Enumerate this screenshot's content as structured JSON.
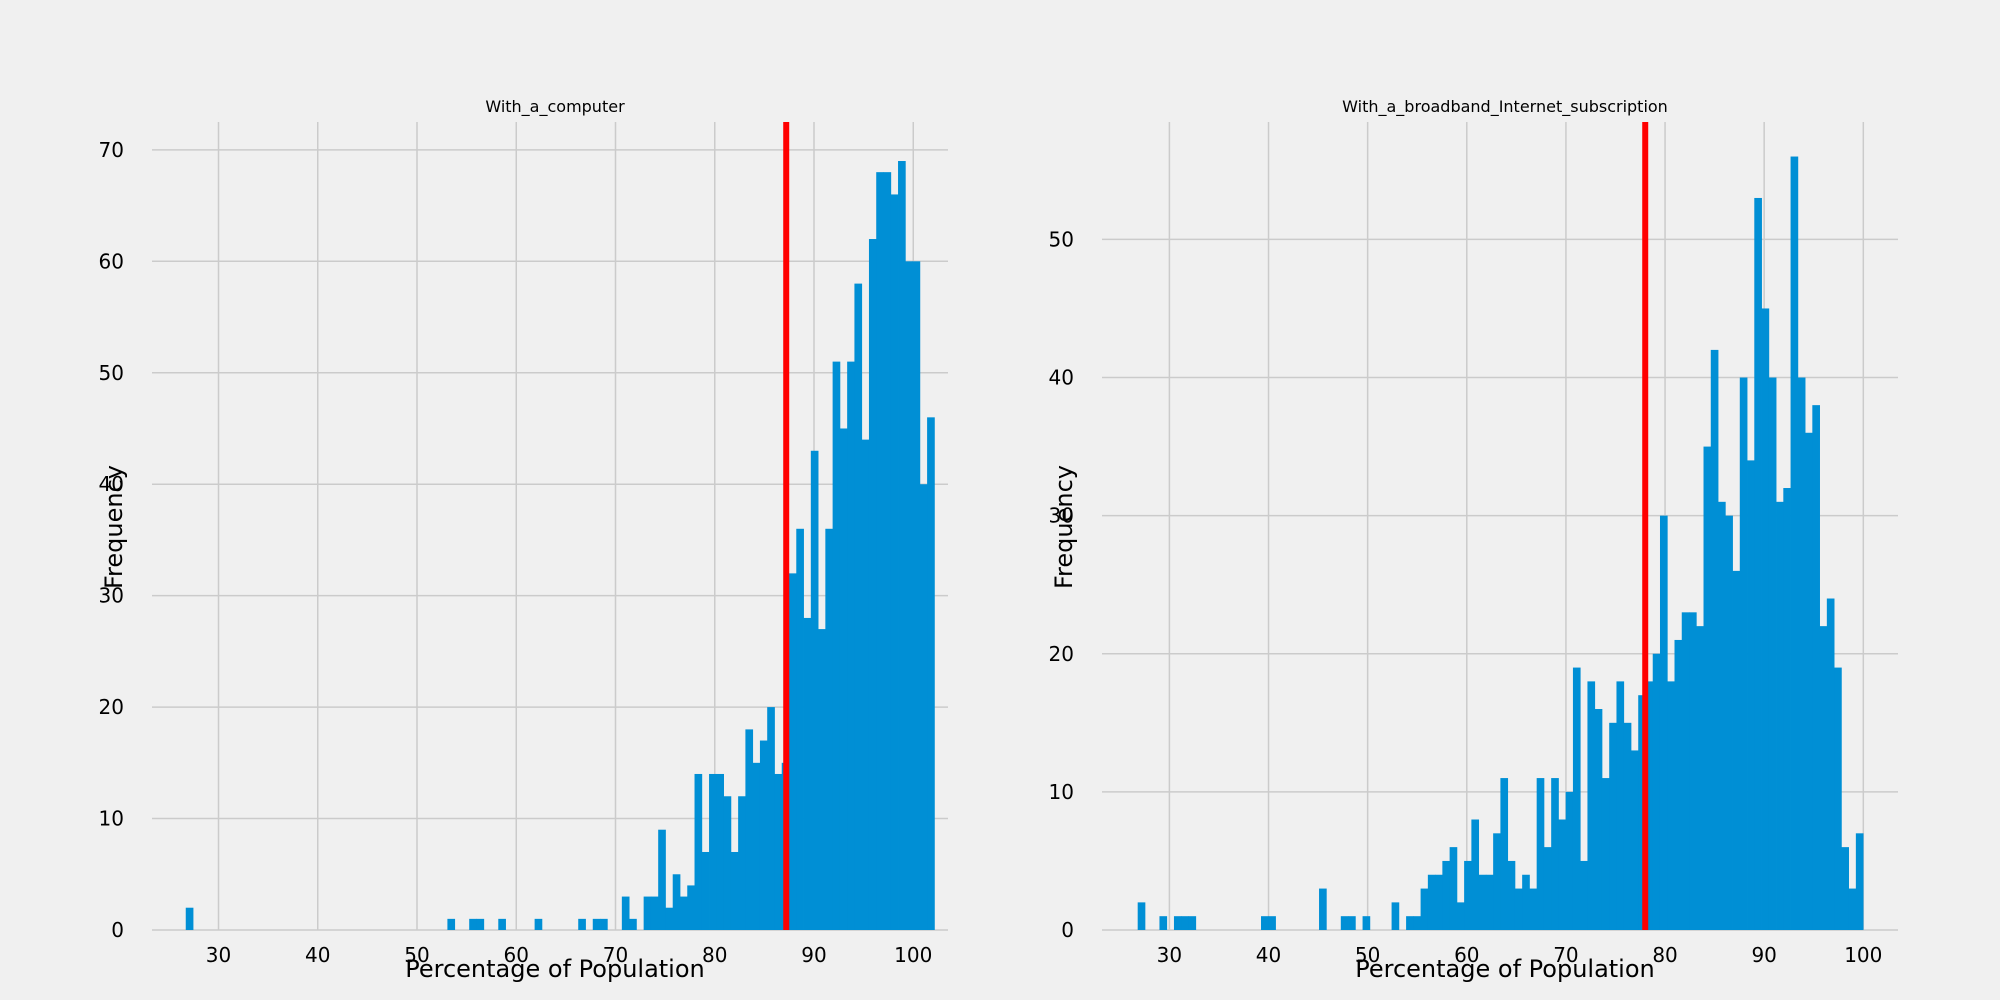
{
  "chart_data": [
    {
      "type": "bar",
      "title": "With_a_computer",
      "xlabel": "Percentage of Population",
      "ylabel": "Frequency",
      "xlim": [
        23.3,
        103.5
      ],
      "ylim": [
        0,
        72.5
      ],
      "xticks": [
        30,
        40,
        50,
        60,
        70,
        80,
        90,
        100
      ],
      "yticks": [
        0,
        10,
        20,
        30,
        40,
        50,
        60,
        70
      ],
      "grid": true,
      "bar_color": "#008fd5",
      "bin_start": 26.7,
      "bin_width": 0.7323,
      "values": [
        2,
        0,
        0,
        0,
        0,
        0,
        0,
        0,
        0,
        0,
        0,
        0,
        0,
        0,
        0,
        0,
        0,
        0,
        0,
        0,
        0,
        0,
        0,
        0,
        0,
        0,
        0,
        0,
        0,
        0,
        0,
        0,
        0,
        0,
        0,
        0,
        1,
        0,
        0,
        1,
        1,
        0,
        0,
        1,
        0,
        0,
        0,
        0,
        1,
        0,
        0,
        0,
        0,
        0,
        1,
        0,
        1,
        1,
        0,
        0,
        3,
        1,
        0,
        3,
        3,
        9,
        2,
        5,
        3,
        4,
        14,
        7,
        14,
        14,
        12,
        7,
        12,
        18,
        15,
        17,
        20,
        14,
        15,
        32,
        36,
        28,
        43,
        27,
        36,
        51,
        45,
        51,
        58,
        44,
        62,
        68,
        68,
        66,
        69,
        60,
        60,
        40,
        46
      ],
      "vline": {
        "x": 87.2,
        "color": "#ff0000"
      }
    },
    {
      "type": "bar",
      "title": "With_a_broadband_Internet_subscription",
      "xlabel": "Percentage of Population",
      "ylabel": "Frequency",
      "xlim": [
        23.2,
        103.5
      ],
      "ylim": [
        0,
        58.5
      ],
      "xticks": [
        30,
        40,
        50,
        60,
        70,
        80,
        90,
        100
      ],
      "yticks": [
        0,
        10,
        20,
        30,
        40,
        50
      ],
      "grid": true,
      "bar_color": "#008fd5",
      "bin_start": 26.8,
      "bin_width": 0.7318,
      "values": [
        2,
        0,
        0,
        1,
        0,
        1,
        1,
        1,
        0,
        0,
        0,
        0,
        0,
        0,
        0,
        0,
        0,
        1,
        1,
        0,
        0,
        0,
        0,
        0,
        0,
        3,
        0,
        0,
        1,
        1,
        0,
        1,
        0,
        0,
        0,
        2,
        0,
        1,
        1,
        3,
        4,
        4,
        5,
        6,
        2,
        5,
        8,
        4,
        4,
        7,
        11,
        5,
        3,
        4,
        3,
        11,
        6,
        11,
        8,
        10,
        19,
        5,
        18,
        16,
        11,
        15,
        18,
        15,
        13,
        17,
        18,
        20,
        30,
        18,
        21,
        23,
        23,
        22,
        35,
        42,
        31,
        30,
        26,
        40,
        34,
        53,
        45,
        40,
        31,
        32,
        56,
        40,
        36,
        38,
        22,
        24,
        19,
        6,
        3,
        7
      ],
      "vline": {
        "x": 78.0,
        "color": "#ff0000"
      }
    }
  ]
}
